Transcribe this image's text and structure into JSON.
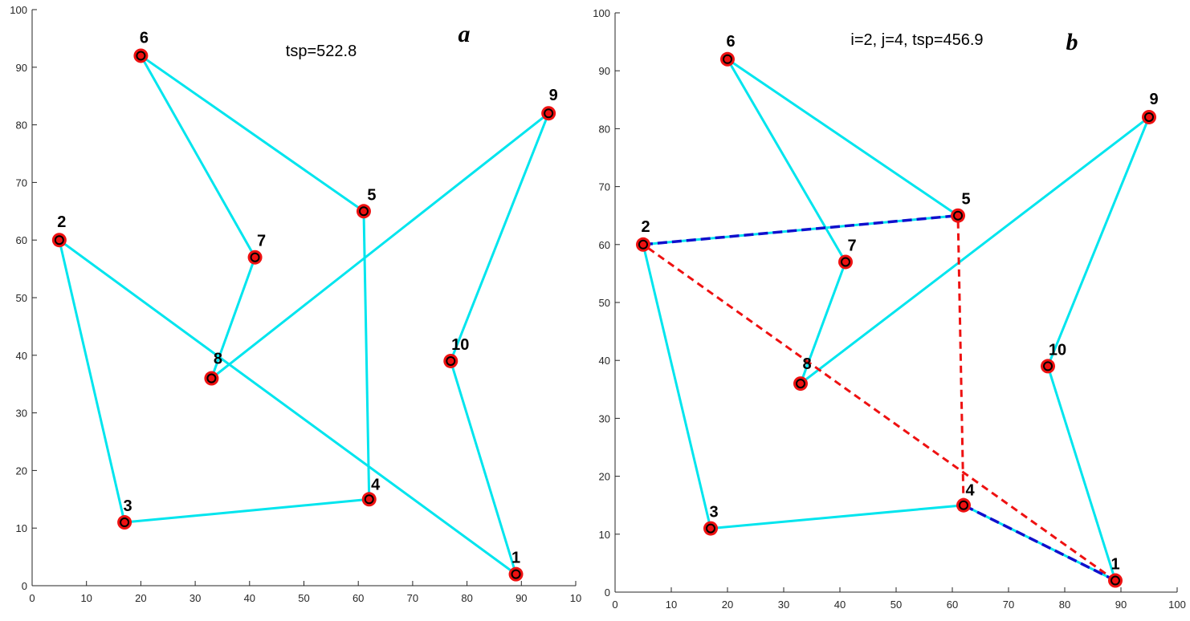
{
  "chart_data": [
    {
      "type": "scatter",
      "title": "",
      "xlabel": "",
      "ylabel": "",
      "xlim": [
        0,
        100
      ],
      "ylim": [
        0,
        100
      ],
      "xticks": [
        0,
        10,
        20,
        30,
        40,
        50,
        60,
        70,
        80,
        90,
        "10"
      ],
      "yticks": [
        0,
        10,
        20,
        30,
        40,
        50,
        60,
        70,
        80,
        90,
        100
      ],
      "grid": false,
      "annotation": "tsp=522.8",
      "panel_letter": "a",
      "colors": {
        "tour": "#00e5ee",
        "marker": "#ee1111",
        "marker_center": "#000000"
      },
      "points": [
        {
          "label": "1",
          "x": 89,
          "y": 2
        },
        {
          "label": "2",
          "x": 5,
          "y": 60
        },
        {
          "label": "3",
          "x": 17,
          "y": 11
        },
        {
          "label": "4",
          "x": 62,
          "y": 15
        },
        {
          "label": "5",
          "x": 61,
          "y": 65
        },
        {
          "label": "6",
          "x": 20,
          "y": 92
        },
        {
          "label": "7",
          "x": 41,
          "y": 57
        },
        {
          "label": "8",
          "x": 33,
          "y": 36
        },
        {
          "label": "9",
          "x": 95,
          "y": 82
        },
        {
          "label": "10",
          "x": 77,
          "y": 39
        }
      ],
      "tour": [
        "1",
        "2",
        "3",
        "4",
        "5",
        "6",
        "7",
        "8",
        "9",
        "10",
        "1"
      ],
      "removed_edges": [],
      "added_edges": []
    },
    {
      "type": "scatter",
      "title": "",
      "xlabel": "",
      "ylabel": "",
      "xlim": [
        0,
        100
      ],
      "ylim": [
        0,
        100
      ],
      "xticks": [
        0,
        10,
        20,
        30,
        40,
        50,
        60,
        70,
        80,
        90,
        100
      ],
      "yticks": [
        0,
        10,
        20,
        30,
        40,
        50,
        60,
        70,
        80,
        90,
        100
      ],
      "grid": false,
      "annotation": "i=2, j=4, tsp=456.9",
      "panel_letter": "b",
      "colors": {
        "tour": "#00e5ee",
        "marker": "#ee1111",
        "marker_center": "#000000",
        "removed": "#ee1111",
        "added": "#1010cc"
      },
      "points": [
        {
          "label": "1",
          "x": 89,
          "y": 2
        },
        {
          "label": "2",
          "x": 5,
          "y": 60
        },
        {
          "label": "3",
          "x": 17,
          "y": 11
        },
        {
          "label": "4",
          "x": 62,
          "y": 15
        },
        {
          "label": "5",
          "x": 61,
          "y": 65
        },
        {
          "label": "6",
          "x": 20,
          "y": 92
        },
        {
          "label": "7",
          "x": 41,
          "y": 57
        },
        {
          "label": "8",
          "x": 33,
          "y": 36
        },
        {
          "label": "9",
          "x": 95,
          "y": 82
        },
        {
          "label": "10",
          "x": 77,
          "y": 39
        }
      ],
      "tour": [
        "1",
        "4",
        "3",
        "2",
        "5",
        "6",
        "7",
        "8",
        "9",
        "10",
        "1"
      ],
      "removed_edges": [
        [
          "1",
          "2"
        ],
        [
          "4",
          "5"
        ]
      ],
      "added_edges": [
        [
          "2",
          "5"
        ],
        [
          "1",
          "4"
        ]
      ]
    }
  ]
}
